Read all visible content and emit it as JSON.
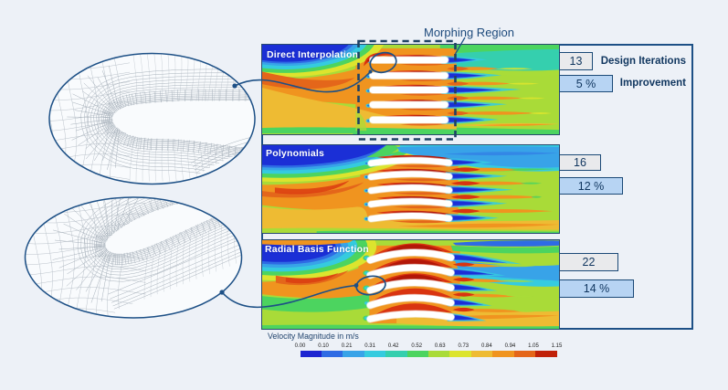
{
  "figure": {
    "panels": [
      {
        "label": "Direct Interpolation",
        "iterations": "13",
        "improvement": "5 %"
      },
      {
        "label": "Polynomials",
        "iterations": "16",
        "improvement": "12 %"
      },
      {
        "label": "Radial Basis Function",
        "iterations": "22",
        "improvement": "14 %"
      }
    ],
    "bar_captions": {
      "iterations": "Design Iterations",
      "improvement": "Improvement"
    },
    "morphing_label": "Morphing Region",
    "colorbar": {
      "title": "Velocity Magnitude in m/s",
      "ticks": [
        "0.00",
        "0.10",
        "0.21",
        "0.31",
        "0.42",
        "0.52",
        "0.63",
        "0.73",
        "0.84",
        "0.94",
        "1.05",
        "1.15"
      ],
      "colors": [
        "#1d25d1",
        "#2e6be4",
        "#38a3e8",
        "#35cbdf",
        "#35cfae",
        "#4cd45f",
        "#a9db38",
        "#dce42e",
        "#eebb33",
        "#f0941f",
        "#e4661a",
        "#c02109"
      ]
    },
    "accent_colors": {
      "outline_navy": "#1d5086",
      "text_navy": "#10365f",
      "iteration_bar_fill": "#e9eaec",
      "improvement_bar_fill": "#b7d4f3"
    }
  },
  "chart_data": {
    "type": "bar",
    "categories": [
      "Direct Interpolation",
      "Polynomials",
      "Radial Basis Function"
    ],
    "series": [
      {
        "name": "Design Iterations",
        "values": [
          13,
          16,
          22
        ]
      },
      {
        "name": "Improvement (%)",
        "values": [
          5,
          12,
          14
        ]
      }
    ],
    "colorbar": {
      "title": "Velocity Magnitude in m/s",
      "min": 0.0,
      "max": 1.15,
      "ticks": [
        0.0,
        0.1,
        0.21,
        0.31,
        0.42,
        0.52,
        0.63,
        0.73,
        0.84,
        0.94,
        1.05,
        1.15
      ]
    }
  }
}
